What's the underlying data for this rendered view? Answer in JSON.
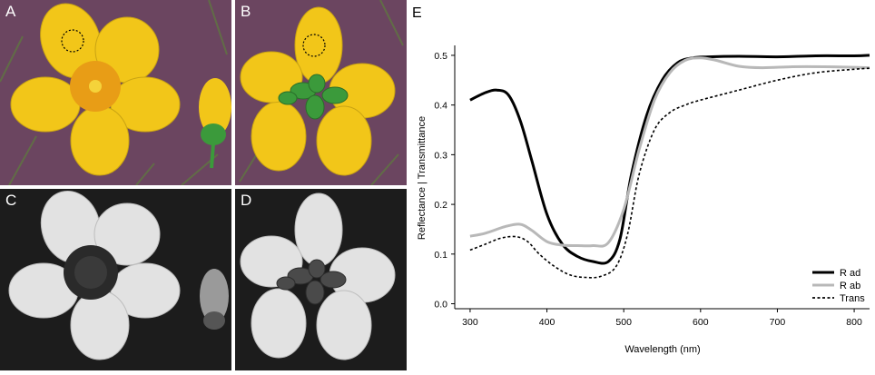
{
  "panels": {
    "a": {
      "label": "A"
    },
    "b": {
      "label": "B"
    },
    "c": {
      "label": "C"
    },
    "d": {
      "label": "D"
    }
  },
  "colors": {
    "petal_yellow": "#f2c619",
    "anther_orange": "#e89d16",
    "sepal_green": "#3b9a3b",
    "ground_purple": "#6b4560",
    "uv_petal": "#e2e2e2",
    "uv_center": "#2a2a2a"
  },
  "chart_data": {
    "type": "line",
    "panel_label": "E",
    "xlabel": "Wavelength (nm)",
    "ylabel": "Reflectance | Transmittance",
    "xlim": [
      280,
      820
    ],
    "ylim": [
      -0.01,
      0.52
    ],
    "x_ticks": [
      300,
      400,
      500,
      600,
      700,
      800
    ],
    "y_ticks": [
      0.0,
      0.1,
      0.2,
      0.3,
      0.4,
      0.5
    ],
    "x_tick_labels": [
      "300",
      "400",
      "500",
      "600",
      "700",
      "800"
    ],
    "y_tick_labels": [
      "0.0",
      "0.1",
      "0.2",
      "0.3",
      "0.4",
      "0.5"
    ],
    "legend_position": "bottom-right",
    "series": [
      {
        "name": "R ad",
        "color": "#000000",
        "dash": "solid",
        "x": [
          300,
          320,
          335,
          350,
          365,
          380,
          400,
          420,
          440,
          460,
          480,
          495,
          510,
          530,
          550,
          570,
          590,
          610,
          650,
          700,
          750,
          800,
          820
        ],
        "y": [
          0.41,
          0.425,
          0.43,
          0.42,
          0.37,
          0.29,
          0.18,
          0.12,
          0.095,
          0.085,
          0.085,
          0.13,
          0.26,
          0.38,
          0.45,
          0.485,
          0.495,
          0.497,
          0.498,
          0.497,
          0.499,
          0.499,
          0.5
        ]
      },
      {
        "name": "R ab",
        "color": "#b8b8b8",
        "dash": "solid",
        "x": [
          300,
          320,
          345,
          365,
          380,
          400,
          420,
          440,
          460,
          480,
          500,
          520,
          540,
          560,
          580,
          600,
          620,
          650,
          680,
          720,
          760,
          800,
          820
        ],
        "y": [
          0.136,
          0.142,
          0.155,
          0.16,
          0.148,
          0.125,
          0.118,
          0.117,
          0.117,
          0.123,
          0.19,
          0.31,
          0.41,
          0.465,
          0.49,
          0.495,
          0.49,
          0.478,
          0.475,
          0.477,
          0.477,
          0.476,
          0.475
        ]
      },
      {
        "name": "Trans",
        "color": "#000000",
        "dash": "dashed",
        "x": [
          300,
          320,
          340,
          360,
          375,
          390,
          410,
          430,
          450,
          470,
          490,
          505,
          520,
          540,
          560,
          580,
          600,
          650,
          700,
          750,
          800,
          820
        ],
        "y": [
          0.108,
          0.12,
          0.132,
          0.135,
          0.125,
          0.1,
          0.075,
          0.058,
          0.053,
          0.055,
          0.075,
          0.14,
          0.26,
          0.35,
          0.385,
          0.4,
          0.41,
          0.43,
          0.45,
          0.465,
          0.472,
          0.474
        ]
      }
    ]
  }
}
